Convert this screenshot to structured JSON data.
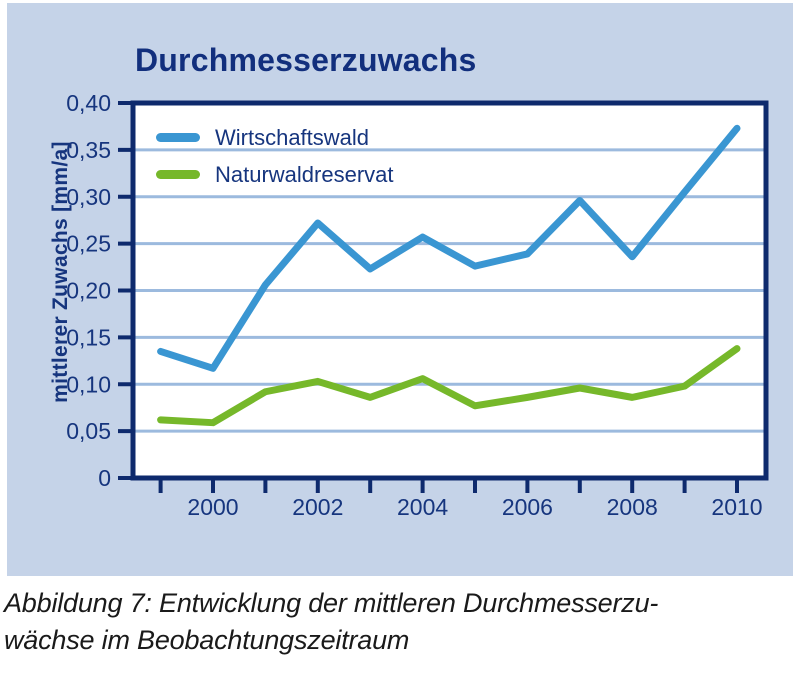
{
  "panel": {
    "title": "Durchmesserzuwachs",
    "background_color": "#c5d3e8"
  },
  "caption": {
    "line1": "Abbildung 7: Entwicklung der mittleren Durchmesserzu-",
    "line2": "wächse im Beobachtungszeitraum"
  },
  "chart_data": {
    "type": "line",
    "title": "Durchmesserzuwachs",
    "ylabel": "mittlerer Zuwachs [mm/a]",
    "xlabel": "",
    "x": [
      1999,
      2000,
      2001,
      2002,
      2003,
      2004,
      2005,
      2006,
      2007,
      2008,
      2009,
      2010
    ],
    "series": [
      {
        "name": "Wirtschaftswald",
        "color": "#3a96d2",
        "values": [
          0.135,
          0.117,
          0.206,
          0.272,
          0.223,
          0.257,
          0.226,
          0.239,
          0.296,
          0.236,
          0.305,
          0.373
        ]
      },
      {
        "name": "Naturwaldreservat",
        "color": "#76b82a",
        "values": [
          0.062,
          0.059,
          0.092,
          0.103,
          0.086,
          0.106,
          0.077,
          0.086,
          0.096,
          0.086,
          0.098,
          0.138
        ]
      }
    ],
    "ylim": [
      0,
      0.4
    ],
    "y_ticks": [
      0,
      0.05,
      0.1,
      0.15,
      0.2,
      0.25,
      0.3,
      0.35,
      0.4
    ],
    "y_tick_labels": [
      "0",
      "0,05",
      "0,10",
      "0,15",
      "0,20",
      "0,25",
      "0,30",
      "0,35",
      "0,40"
    ],
    "x_labeled_years": [
      2000,
      2002,
      2004,
      2006,
      2008,
      2010
    ],
    "x_tick_labels": [
      "2000",
      "2002",
      "2004",
      "2006",
      "2008",
      "2010"
    ],
    "grid": "horizontal",
    "legend_position": "top-left-inside",
    "colors": {
      "axis": "#0e2a6d",
      "grid": "#9cbade",
      "tick_text": "#16357e",
      "plot_background": "#ffffff"
    }
  }
}
